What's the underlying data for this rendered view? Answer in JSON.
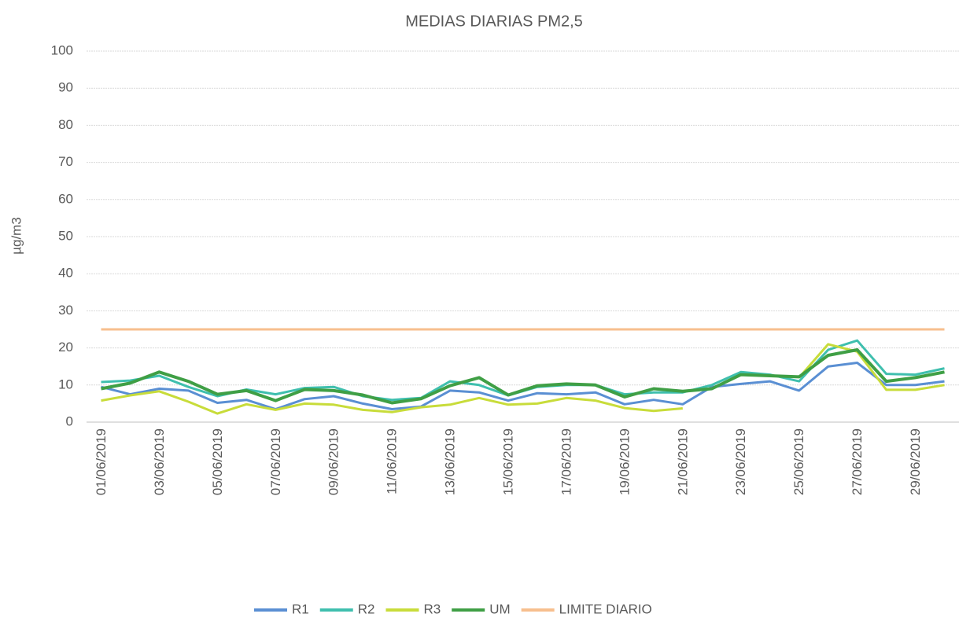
{
  "chart_data": {
    "type": "line",
    "title": "MEDIAS DIARIAS PM2,5",
    "y_label": "µg/m3",
    "categories": [
      "01/06/2019",
      null,
      "03/06/2019",
      null,
      "05/06/2019",
      null,
      "07/06/2019",
      null,
      "09/06/2019",
      null,
      "11/06/2019",
      null,
      "13/06/2019",
      null,
      "15/06/2019",
      null,
      "17/06/2019",
      null,
      "19/06/2019",
      null,
      "21/06/2019",
      null,
      "23/06/2019",
      null,
      "25/06/2019",
      null,
      "27/06/2019",
      null,
      "29/06/2019",
      null
    ],
    "series": [
      {
        "name": "R1",
        "color": "#5a8fd3",
        "values": [
          9.5,
          7.5,
          9,
          8.5,
          5.2,
          6,
          3.5,
          6.2,
          7,
          5,
          3.5,
          4.2,
          8.5,
          8,
          5.8,
          7.8,
          7.5,
          8,
          4.8,
          6,
          4.8,
          9.5,
          10.3,
          11,
          8.5,
          15,
          16,
          10,
          10,
          11
        ]
      },
      {
        "name": "R2",
        "color": "#3fbfae",
        "values": [
          10.8,
          11.2,
          12.5,
          9.5,
          7,
          8.8,
          7.5,
          9.2,
          9.5,
          7,
          6,
          6.5,
          11,
          10,
          7.2,
          9.5,
          10,
          10,
          7.5,
          8,
          8,
          10,
          13.5,
          12.8,
          11,
          19.5,
          22,
          13,
          12.8,
          14.5
        ]
      },
      {
        "name": "R3",
        "color": "#c8dc3a",
        "values": [
          5.8,
          7.2,
          8.3,
          5.5,
          2.3,
          4.8,
          3.3,
          5,
          4.7,
          3.3,
          2.7,
          4,
          4.7,
          6.5,
          4.7,
          5,
          6.5,
          5.8,
          3.8,
          3,
          3.7,
          null,
          null,
          null,
          12,
          21,
          19,
          8.7,
          8.7,
          10
        ]
      },
      {
        "name": "UM",
        "color": "#3f9f45",
        "values": [
          9,
          10.5,
          13.5,
          11,
          7.5,
          8.5,
          5.8,
          8.8,
          8.5,
          7.3,
          5.2,
          6.3,
          9.8,
          12,
          7.3,
          9.8,
          10.3,
          10,
          6.8,
          9,
          8.3,
          9,
          12.8,
          12.5,
          12.2,
          18,
          19.5,
          11,
          12,
          13.5
        ]
      },
      {
        "name": "LIMITE DIARIO",
        "color": "#f7bf8e",
        "values": [
          25,
          25,
          25,
          25,
          25,
          25,
          25,
          25,
          25,
          25,
          25,
          25,
          25,
          25,
          25,
          25,
          25,
          25,
          25,
          25,
          25,
          25,
          25,
          25,
          25,
          25,
          25,
          25,
          25,
          25
        ]
      }
    ],
    "ylim": [
      0,
      100
    ],
    "yticks": [
      0,
      10,
      20,
      30,
      40,
      50,
      60,
      70,
      80,
      90,
      100
    ],
    "grid": true,
    "legend": "bottom"
  }
}
